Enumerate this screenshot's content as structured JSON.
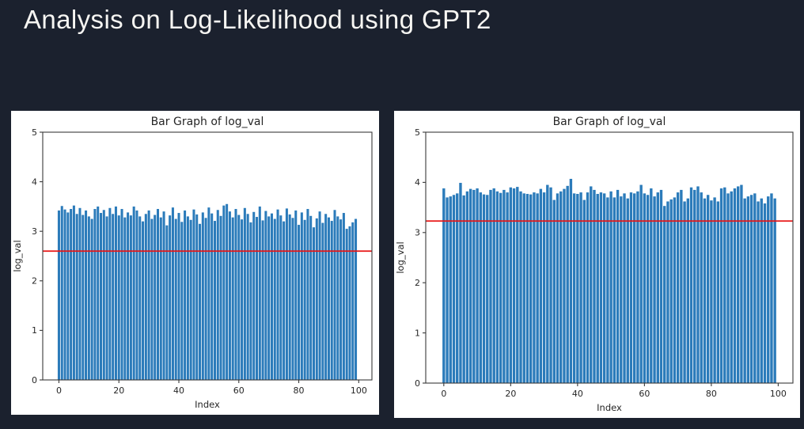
{
  "slide": {
    "title": "Analysis on Log-Likelihood using GPT2",
    "background_color": "#1b212e",
    "title_color": "#f6f5f2"
  },
  "chart_data": [
    {
      "type": "bar",
      "title": "Bar Graph of log_val",
      "xlabel": "Index",
      "ylabel": "log_val",
      "ylim": [
        0,
        5
      ],
      "yticks": [
        0,
        1,
        2,
        3,
        4,
        5
      ],
      "xticks": [
        0,
        20,
        40,
        60,
        80,
        100
      ],
      "xlim": [
        -5.4,
        104.4
      ],
      "grid": false,
      "legend": "none",
      "bar_color": "#2b7bba",
      "refline": {
        "value": 2.6,
        "color": "#e81313"
      },
      "values": [
        3.42,
        3.51,
        3.44,
        3.38,
        3.45,
        3.52,
        3.35,
        3.47,
        3.33,
        3.42,
        3.3,
        3.25,
        3.45,
        3.5,
        3.37,
        3.43,
        3.3,
        3.47,
        3.35,
        3.5,
        3.32,
        3.45,
        3.28,
        3.38,
        3.32,
        3.5,
        3.42,
        3.3,
        3.2,
        3.35,
        3.42,
        3.25,
        3.33,
        3.45,
        3.28,
        3.4,
        3.12,
        3.32,
        3.48,
        3.25,
        3.37,
        3.19,
        3.42,
        3.3,
        3.23,
        3.44,
        3.34,
        3.15,
        3.38,
        3.27,
        3.48,
        3.36,
        3.21,
        3.43,
        3.31,
        3.52,
        3.55,
        3.4,
        3.28,
        3.45,
        3.33,
        3.24,
        3.47,
        3.35,
        3.18,
        3.39,
        3.29,
        3.5,
        3.22,
        3.41,
        3.3,
        3.36,
        3.25,
        3.44,
        3.32,
        3.2,
        3.46,
        3.34,
        3.27,
        3.42,
        3.13,
        3.38,
        3.23,
        3.45,
        3.31,
        3.08,
        3.26,
        3.4,
        3.17,
        3.35,
        3.28,
        3.21,
        3.43,
        3.3,
        3.24,
        3.37,
        3.05,
        3.1,
        3.18,
        3.25
      ]
    },
    {
      "type": "bar",
      "title": "Bar Graph of log_val",
      "xlabel": "Index",
      "ylabel": "log_val",
      "ylim": [
        0,
        5
      ],
      "yticks": [
        0,
        1,
        2,
        3,
        4,
        5
      ],
      "xticks": [
        0,
        20,
        40,
        60,
        80,
        100
      ],
      "xlim": [
        -5.4,
        104.4
      ],
      "grid": false,
      "legend": "none",
      "bar_color": "#2b7bba",
      "refline": {
        "value": 3.23,
        "color": "#e81313"
      },
      "values": [
        3.88,
        3.7,
        3.72,
        3.75,
        3.78,
        3.99,
        3.74,
        3.82,
        3.87,
        3.85,
        3.88,
        3.8,
        3.76,
        3.75,
        3.85,
        3.88,
        3.82,
        3.79,
        3.85,
        3.8,
        3.9,
        3.88,
        3.91,
        3.82,
        3.78,
        3.77,
        3.76,
        3.8,
        3.78,
        3.87,
        3.8,
        3.95,
        3.9,
        3.65,
        3.78,
        3.82,
        3.87,
        3.93,
        4.07,
        3.78,
        3.77,
        3.8,
        3.65,
        3.8,
        3.92,
        3.85,
        3.77,
        3.8,
        3.78,
        3.7,
        3.82,
        3.7,
        3.85,
        3.72,
        3.78,
        3.68,
        3.8,
        3.78,
        3.82,
        3.95,
        3.78,
        3.75,
        3.88,
        3.72,
        3.8,
        3.85,
        3.53,
        3.62,
        3.66,
        3.7,
        3.8,
        3.85,
        3.62,
        3.68,
        3.9,
        3.85,
        3.92,
        3.8,
        3.68,
        3.75,
        3.64,
        3.7,
        3.62,
        3.88,
        3.9,
        3.78,
        3.82,
        3.88,
        3.92,
        3.95,
        3.68,
        3.72,
        3.75,
        3.78,
        3.62,
        3.68,
        3.58,
        3.72,
        3.78,
        3.68
      ]
    }
  ]
}
